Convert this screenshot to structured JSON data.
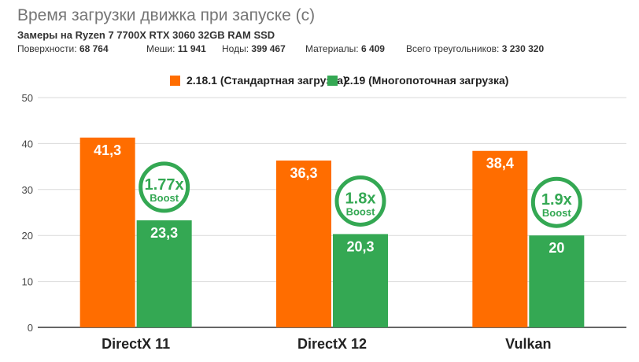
{
  "header": {
    "title": "Время загрузки движка при запуске (с)",
    "subtitle": "Замеры на Ryzen 7 7700X RTX 3060 32GB RAM SSD"
  },
  "stats": [
    {
      "label": "Поверхности:",
      "value": "68 764"
    },
    {
      "label": "Меши:",
      "value": "11 941"
    },
    {
      "label": "Ноды:",
      "value": "399 467"
    },
    {
      "label": "Материалы:",
      "value": "6 409"
    },
    {
      "label": "Всего треугольников:",
      "value": "3 230 320"
    }
  ],
  "colors": {
    "series1": "#ff6d00",
    "series2": "#34a853",
    "grid": "#d9d9d9"
  },
  "chart_data": {
    "type": "bar",
    "categories": [
      "DirectX 11",
      "DirectX 12",
      "Vulkan"
    ],
    "series": [
      {
        "name": "2.18.1 (Стандартная загрузка)",
        "values": [
          41.3,
          36.3,
          38.4
        ],
        "labels": [
          "41,3",
          "36,3",
          "38,4"
        ]
      },
      {
        "name": "2.19 (Многопоточная загрузка)",
        "values": [
          23.3,
          20.3,
          20
        ],
        "labels": [
          "23,3",
          "20,3",
          "20"
        ]
      }
    ],
    "ylim": [
      0,
      50
    ],
    "yticks": [
      0,
      10,
      20,
      30,
      40,
      50
    ],
    "grid": true,
    "legend": "top-center",
    "annotations": [
      {
        "category": "DirectX 11",
        "value": "1.77x",
        "text": "Boost"
      },
      {
        "category": "DirectX 12",
        "value": "1.8x",
        "text": "Boost"
      },
      {
        "category": "Vulkan",
        "value": "1.9x",
        "text": "Boost"
      }
    ]
  }
}
